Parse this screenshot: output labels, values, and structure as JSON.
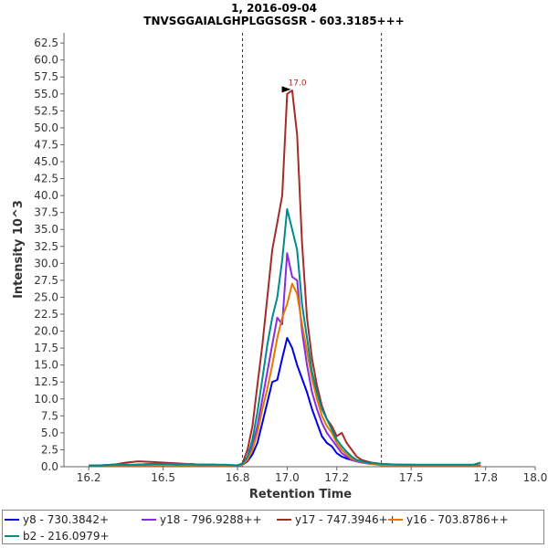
{
  "chart_data": {
    "type": "line",
    "title": "1, 2016-09-04",
    "subtitle": "TNVSGGAIALGHPLGGSGSR - 603.3185+++",
    "xlabel": "Retention Time",
    "ylabel": "Intensity 10^3",
    "xlim": [
      16.1,
      18.0
    ],
    "ylim": [
      0,
      64
    ],
    "x_ticks": [
      "16.2",
      "16.5",
      "16.8",
      "17.0",
      "17.2",
      "17.5",
      "17.8",
      "18.0"
    ],
    "y_ticks": [
      "0.0",
      "2.5",
      "5.0",
      "7.5",
      "10.0",
      "12.5",
      "15.0",
      "17.5",
      "20.0",
      "22.5",
      "25.0",
      "27.5",
      "30.0",
      "32.5",
      "35.0",
      "37.5",
      "40.0",
      "42.5",
      "45.0",
      "47.5",
      "50.0",
      "52.5",
      "55.0",
      "57.5",
      "60.0",
      "62.5"
    ],
    "boundaries": [
      16.82,
      17.38
    ],
    "annotation": {
      "text": "17.0",
      "x": 17.03,
      "y": 55.6
    },
    "x": [
      16.2,
      16.25,
      16.3,
      16.35,
      16.4,
      16.45,
      16.5,
      16.55,
      16.6,
      16.65,
      16.7,
      16.75,
      16.8,
      16.82,
      16.84,
      16.86,
      16.88,
      16.9,
      16.92,
      16.94,
      16.96,
      16.98,
      17.0,
      17.02,
      17.04,
      17.06,
      17.08,
      17.1,
      17.12,
      17.14,
      17.16,
      17.18,
      17.2,
      17.22,
      17.24,
      17.26,
      17.28,
      17.3,
      17.32,
      17.34,
      17.36,
      17.38,
      17.4,
      17.45,
      17.5,
      17.55,
      17.6,
      17.65,
      17.7,
      17.75,
      17.78
    ],
    "series": [
      {
        "name": "y8 - 730.3842+",
        "color": "#0000e6",
        "values": [
          0.2,
          0.2,
          0.3,
          0.2,
          0.3,
          0.4,
          0.3,
          0.3,
          0.4,
          0.3,
          0.3,
          0.2,
          0.2,
          0.3,
          0.8,
          1.8,
          3.5,
          6.5,
          9.5,
          12.5,
          12.8,
          16.0,
          19.0,
          17.5,
          15.0,
          13.0,
          11.0,
          8.5,
          6.5,
          4.5,
          3.5,
          3.0,
          2.0,
          1.5,
          1.2,
          1.0,
          0.8,
          0.7,
          0.5,
          0.4,
          0.5,
          0.3,
          0.3,
          0.2,
          0.2,
          0.2,
          0.2,
          0.2,
          0.2,
          0.2,
          0.2
        ]
      },
      {
        "name": "y18 - 796.9288++",
        "color": "#8a2be2",
        "values": [
          0.2,
          0.1,
          0.2,
          0.3,
          0.2,
          0.3,
          0.2,
          0.4,
          0.3,
          0.2,
          0.2,
          0.2,
          0.2,
          0.4,
          1.2,
          3.0,
          6.0,
          10.0,
          14.0,
          18.0,
          22.0,
          21.0,
          31.5,
          28.0,
          27.5,
          20.0,
          15.0,
          11.0,
          8.5,
          6.5,
          5.0,
          4.0,
          3.0,
          2.0,
          1.5,
          1.0,
          0.8,
          0.6,
          0.5,
          0.4,
          0.4,
          0.3,
          0.3,
          0.3,
          0.2,
          0.2,
          0.2,
          0.2,
          0.2,
          0.2,
          0.2
        ]
      },
      {
        "name": "y17 - 747.3946++",
        "color": "#a52a2a",
        "values": [
          0.2,
          0.2,
          0.3,
          0.6,
          0.8,
          0.7,
          0.6,
          0.5,
          0.4,
          0.3,
          0.3,
          0.2,
          0.2,
          0.5,
          2.5,
          6.0,
          12.0,
          18.0,
          25.0,
          32.0,
          36.0,
          40.0,
          55.0,
          55.5,
          49.0,
          33.0,
          22.0,
          16.0,
          12.0,
          9.0,
          7.0,
          6.0,
          4.5,
          5.0,
          3.5,
          2.5,
          1.5,
          1.0,
          0.8,
          0.6,
          0.5,
          0.4,
          0.3,
          0.3,
          0.3,
          0.2,
          0.2,
          0.2,
          0.2,
          0.2,
          0.2
        ]
      },
      {
        "name": "y16 - 703.8786++",
        "color": "#e07b00",
        "values": [
          0.1,
          0.1,
          0.1,
          0.2,
          0.1,
          0.1,
          0.2,
          0.1,
          0.1,
          0.1,
          0.1,
          0.1,
          0.1,
          0.3,
          1.0,
          2.5,
          5.0,
          8.5,
          11.5,
          15.0,
          19.0,
          22.0,
          24.0,
          27.0,
          25.5,
          21.0,
          17.0,
          13.0,
          10.0,
          7.5,
          6.0,
          5.0,
          3.5,
          2.5,
          1.8,
          1.2,
          0.9,
          0.7,
          0.5,
          0.4,
          0.3,
          0.2,
          0.2,
          0.2,
          0.1,
          0.1,
          0.1,
          0.1,
          0.1,
          0.1,
          0.1
        ]
      },
      {
        "name": "b2 - 216.0979+",
        "color": "#008b8b",
        "values": [
          0.2,
          0.2,
          0.3,
          0.3,
          0.3,
          0.4,
          0.4,
          0.4,
          0.4,
          0.3,
          0.3,
          0.3,
          0.2,
          0.4,
          1.5,
          4.0,
          8.0,
          13.0,
          18.0,
          22.0,
          25.0,
          30.5,
          38.0,
          35.0,
          32.0,
          24.0,
          19.0,
          14.0,
          11.0,
          8.5,
          7.0,
          5.5,
          4.0,
          3.0,
          2.2,
          1.5,
          1.0,
          0.8,
          0.6,
          0.5,
          0.5,
          0.4,
          0.4,
          0.3,
          0.3,
          0.3,
          0.3,
          0.3,
          0.3,
          0.3,
          0.6
        ]
      }
    ]
  }
}
